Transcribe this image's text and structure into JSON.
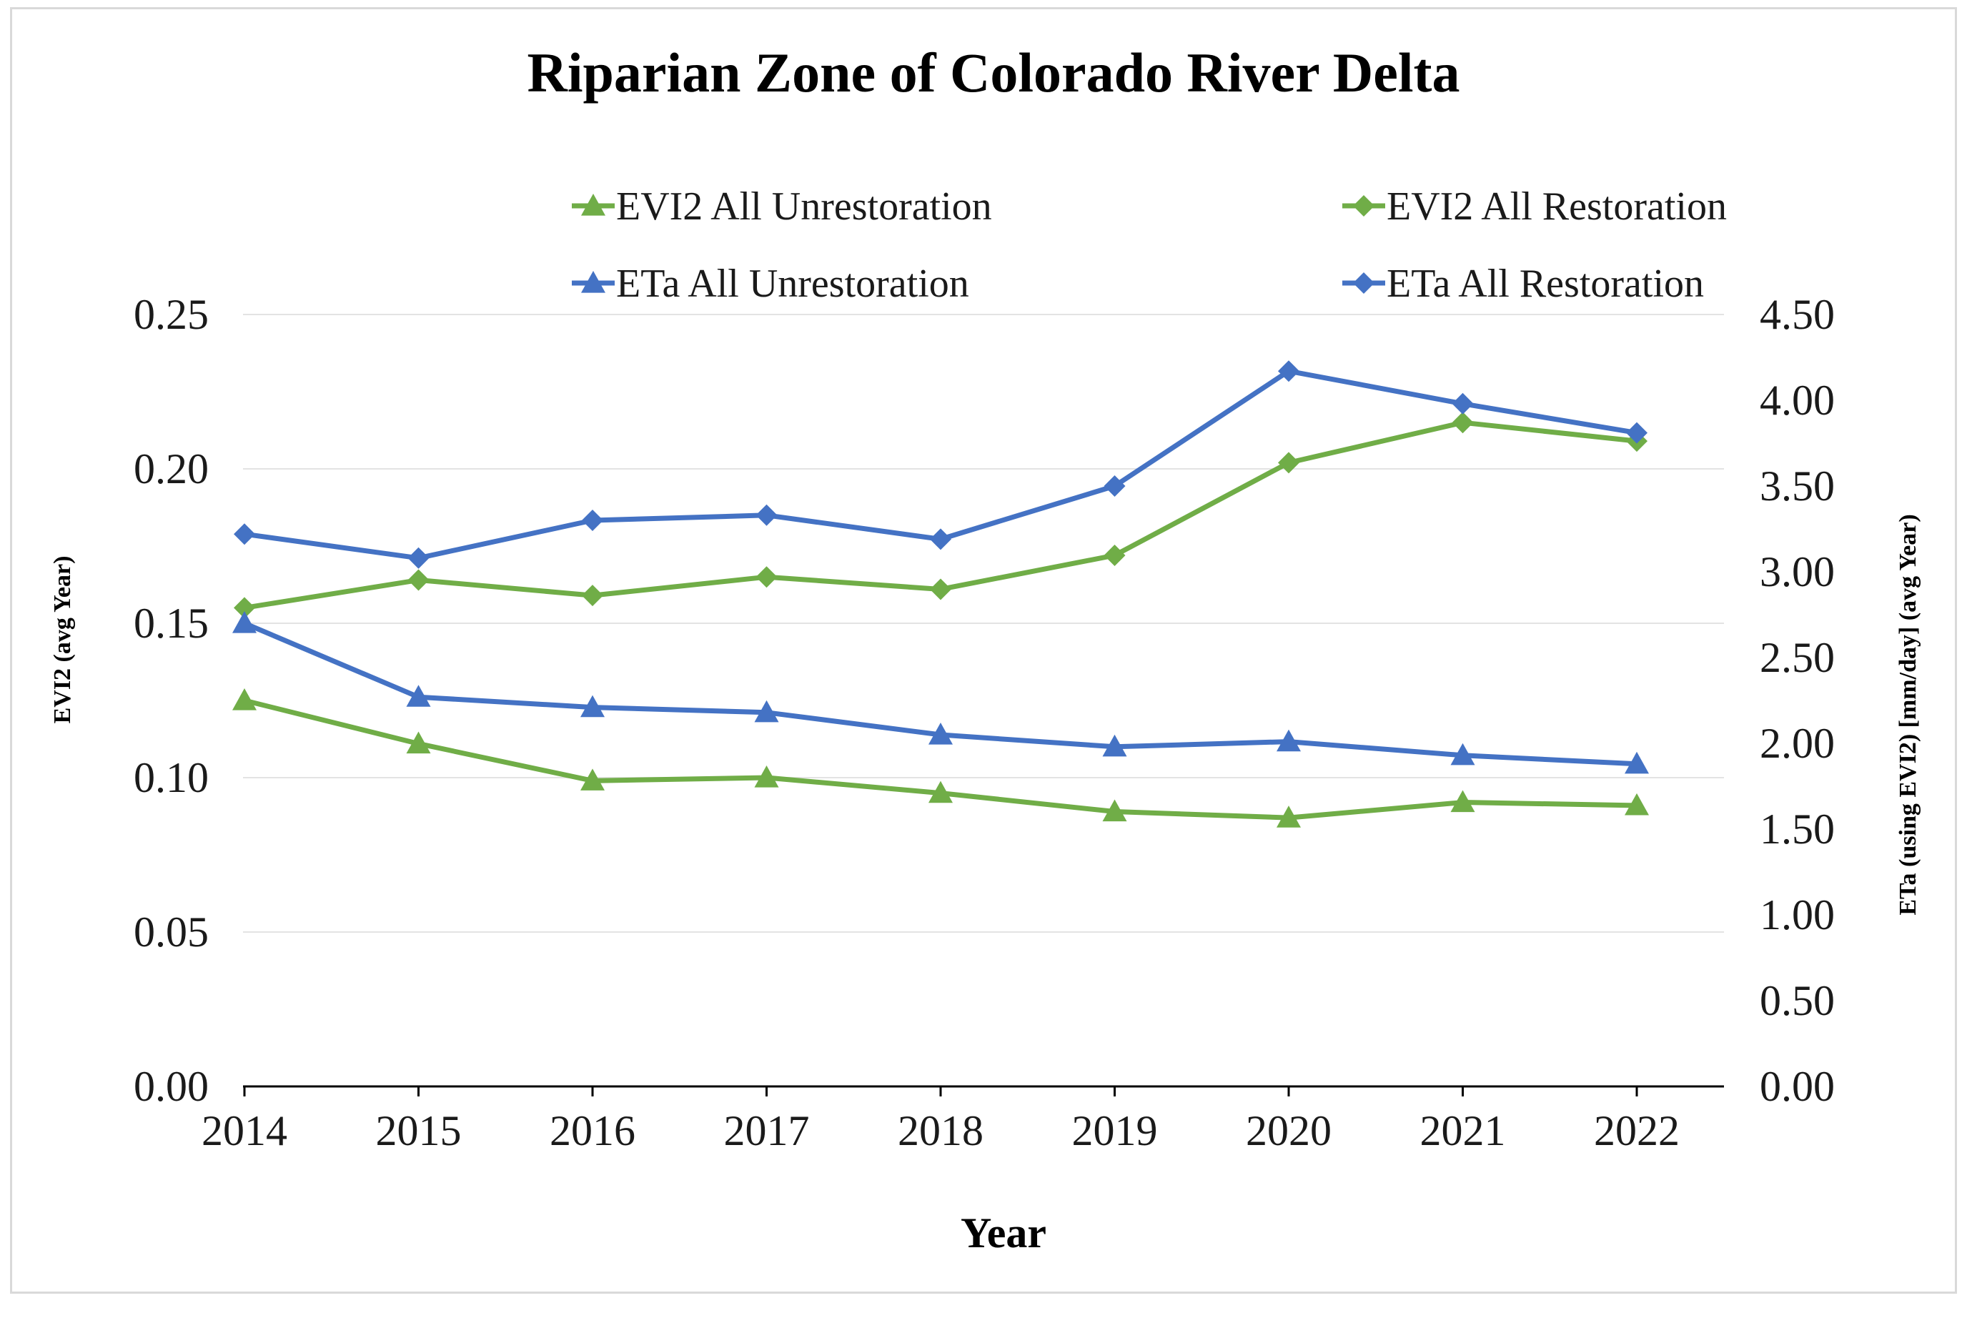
{
  "chart_data": {
    "type": "line",
    "title": "Riparian Zone of Colorado River Delta",
    "xlabel": "Year",
    "ylabel_left": "EVI2 (avg Year)",
    "ylabel_right": "ETa (using EVI2) [mm/day] (avg Year)",
    "categories": [
      "2014",
      "2015",
      "2016",
      "2017",
      "2018",
      "2019",
      "2020",
      "2021",
      "2022"
    ],
    "y_left": {
      "min": 0,
      "max": 0.25,
      "ticks": [
        "0.00",
        "0.05",
        "0.10",
        "0.15",
        "0.20",
        "0.25"
      ]
    },
    "y_right": {
      "min": 0,
      "max": 4.5,
      "ticks": [
        "0.00",
        "0.50",
        "1.00",
        "1.50",
        "2.00",
        "2.50",
        "3.00",
        "3.50",
        "4.00",
        "4.50"
      ]
    },
    "gridlines": true,
    "legend_position": "top",
    "series": [
      {
        "name": "EVI2 All Unrestoration",
        "axis": "left",
        "marker": "triangle",
        "color": "#70ad47",
        "values": [
          0.125,
          0.111,
          0.099,
          0.1,
          0.095,
          0.089,
          0.087,
          0.092,
          0.091
        ]
      },
      {
        "name": "EVI2 All Restoration",
        "axis": "left",
        "marker": "diamond",
        "color": "#70ad47",
        "values": [
          0.155,
          0.164,
          0.159,
          0.165,
          0.161,
          0.172,
          0.202,
          0.215,
          0.209
        ]
      },
      {
        "name": "ETa All Unrestoration",
        "axis": "right",
        "marker": "triangle",
        "color": "#4472c4",
        "values": [
          2.7,
          2.27,
          2.21,
          2.18,
          2.05,
          1.98,
          2.01,
          1.93,
          1.88
        ]
      },
      {
        "name": "ETa All Restoration",
        "axis": "right",
        "marker": "diamond",
        "color": "#4472c4",
        "values": [
          3.22,
          3.08,
          3.3,
          3.33,
          3.19,
          3.5,
          4.17,
          3.98,
          3.81
        ]
      }
    ]
  }
}
